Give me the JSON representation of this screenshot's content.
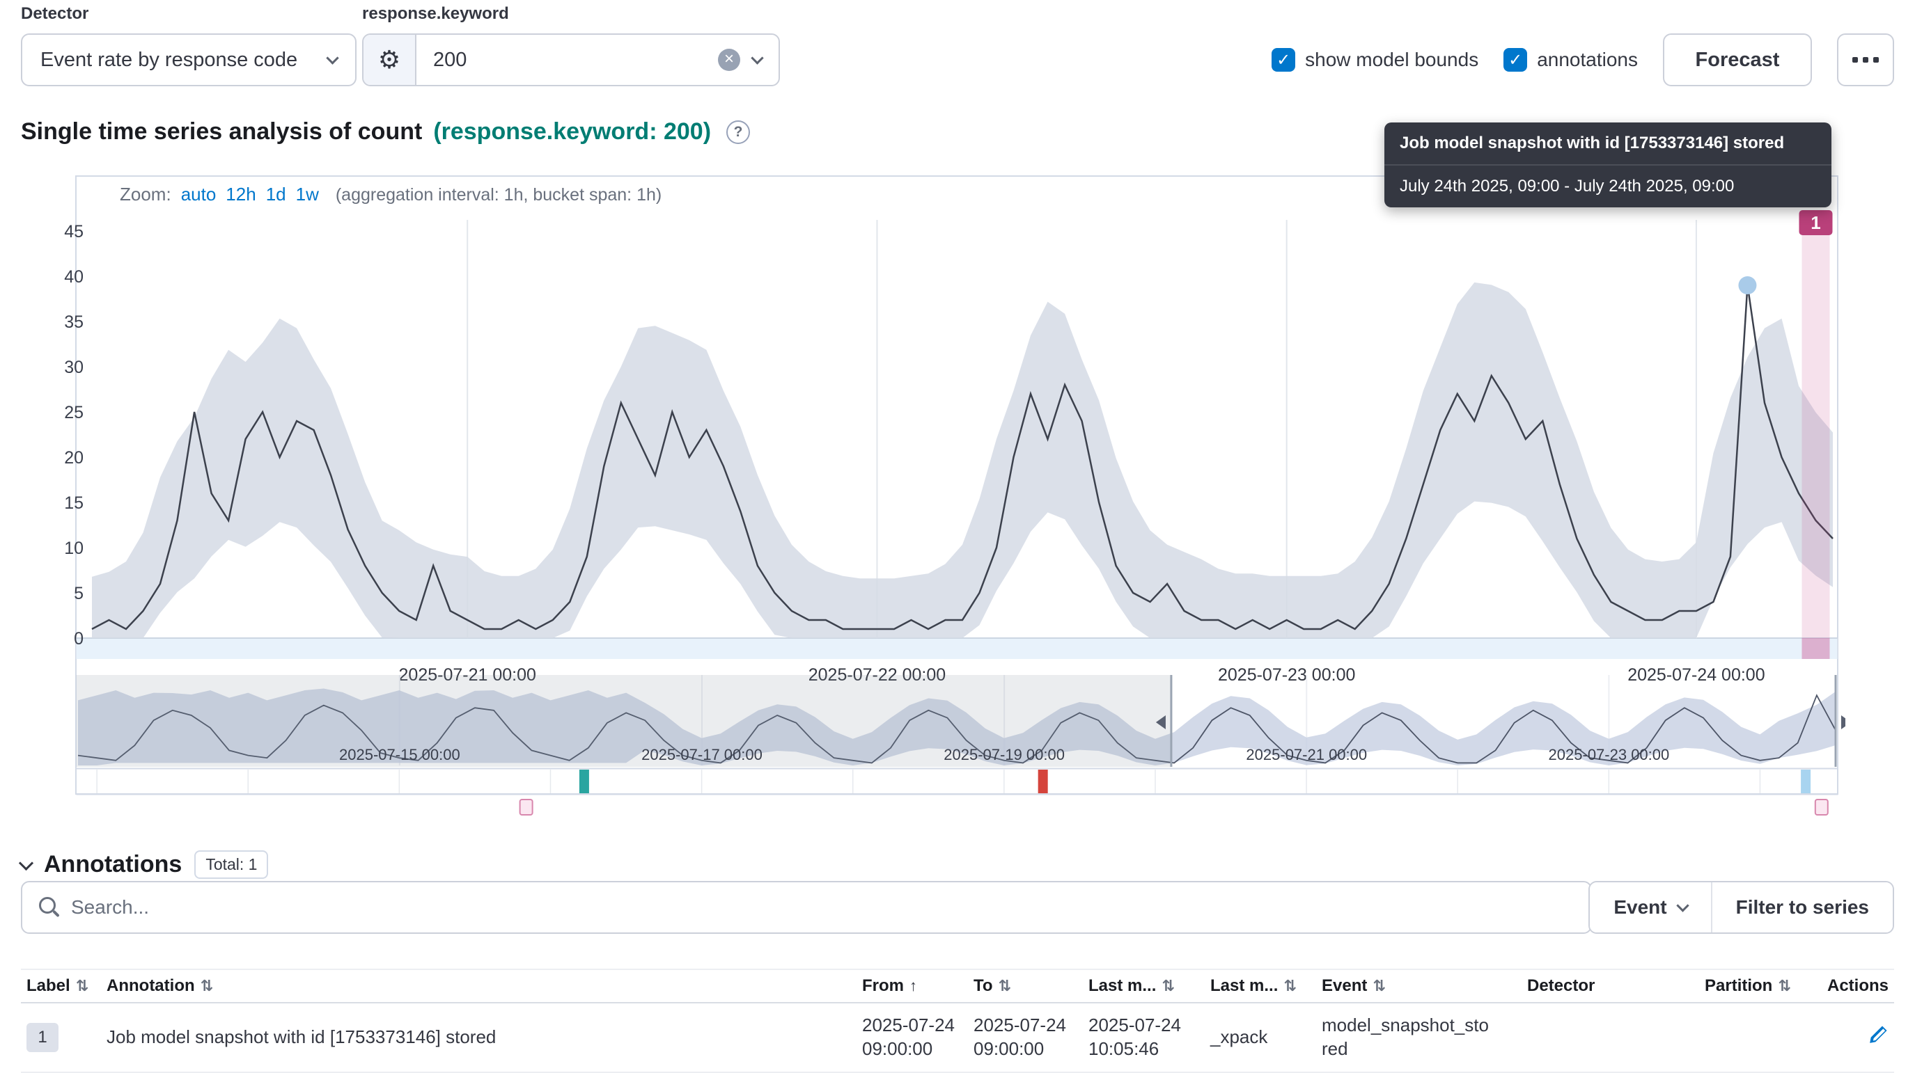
{
  "icons": {
    "check": "✓",
    "question": "?",
    "close": "×",
    "gear": "⚙"
  },
  "topbar": {
    "detector_label": "Detector",
    "detector_value": "Event rate by response code",
    "field_label": "response.keyword",
    "field_value": "200",
    "show_model_bounds_label": "show model bounds",
    "annotations_label": "annotations",
    "forecast_label": "Forecast"
  },
  "title": {
    "main": "Single time series analysis of count",
    "accent": "(response.keyword: 200)"
  },
  "tooltip": {
    "title": "Job model snapshot with id [1753373146] stored",
    "subtitle": "July 24th 2025, 09:00 - July 24th 2025, 09:00"
  },
  "zoom": {
    "label": "Zoom:",
    "links": [
      "auto",
      "12h",
      "1d",
      "1w"
    ],
    "suffix": "(aggregation interval: 1h, bucket span: 1h)"
  },
  "chart_data": {
    "type": "line",
    "title": "Single time series analysis of count",
    "ylabel": "",
    "xlabel": "",
    "ylim": [
      0,
      47
    ],
    "y_ticks": [
      0,
      5,
      10,
      15,
      20,
      25,
      30,
      35,
      40,
      45
    ],
    "x_ticks": [
      {
        "index": 22,
        "label": "2025-07-21 00:00"
      },
      {
        "index": 46,
        "label": "2025-07-22 00:00"
      },
      {
        "index": 70,
        "label": "2025-07-23 00:00"
      },
      {
        "index": 94,
        "label": "2025-07-24 00:00"
      }
    ],
    "series": [
      {
        "name": "count",
        "values": [
          1,
          2,
          1,
          3,
          6,
          13,
          25,
          16,
          13,
          22,
          25,
          20,
          24,
          23,
          18,
          12,
          8,
          5,
          3,
          2,
          8,
          3,
          2,
          1,
          1,
          2,
          1,
          2,
          4,
          9,
          19,
          26,
          22,
          18,
          25,
          20,
          23,
          19,
          14,
          8,
          5,
          3,
          2,
          2,
          1,
          1,
          1,
          1,
          2,
          1,
          2,
          2,
          5,
          10,
          20,
          27,
          22,
          28,
          24,
          15,
          8,
          5,
          4,
          6,
          3,
          2,
          2,
          1,
          2,
          1,
          2,
          1,
          1,
          2,
          1,
          3,
          6,
          11,
          17,
          23,
          27,
          24,
          29,
          26,
          22,
          24,
          17,
          11,
          7,
          4,
          3,
          2,
          2,
          3,
          3,
          4,
          9,
          39,
          26,
          20,
          16,
          13,
          11
        ]
      }
    ],
    "bounds": {
      "base_hi": 5,
      "factor_hi": 0.33,
      "base_lo": 4.5,
      "factor_lo": 0.24
    },
    "focus_marker_index": 97,
    "annotation": {
      "label": "1",
      "index": 101
    },
    "context": {
      "values": [
        4,
        3,
        2,
        8,
        18,
        22,
        20,
        15,
        6,
        4,
        3,
        10,
        20,
        24,
        21,
        14,
        5,
        3,
        2,
        9,
        19,
        23,
        22,
        13,
        6,
        4,
        2,
        7,
        17,
        21,
        18,
        10,
        4,
        2,
        1,
        6,
        16,
        20,
        17,
        9,
        3,
        2,
        1,
        7,
        18,
        22,
        19,
        10,
        4,
        2,
        1,
        6,
        17,
        21,
        18,
        9,
        3,
        2,
        1,
        7,
        18,
        23,
        20,
        11,
        4,
        2,
        1,
        6,
        16,
        21,
        18,
        10,
        3,
        1,
        1,
        6,
        17,
        22,
        18,
        9,
        3,
        2,
        1,
        7,
        18,
        23,
        19,
        10,
        4,
        2,
        3,
        9,
        28,
        14
      ],
      "bounds": {
        "base_hi": 4,
        "factor_hi": 0.5,
        "base_lo": 3,
        "factor_lo": 0.35
      },
      "wide_until_index": 29,
      "wide_hi": 26,
      "wide_lo": 1,
      "ticks": [
        {
          "f": 0.183,
          "label": "2025-07-15 00:00"
        },
        {
          "f": 0.355,
          "label": "2025-07-17 00:00"
        },
        {
          "f": 0.527,
          "label": "2025-07-19 00:00"
        },
        {
          "f": 0.699,
          "label": "2025-07-21 00:00"
        },
        {
          "f": 0.871,
          "label": "2025-07-23 00:00"
        }
      ],
      "selection": [
        0.622,
        1.0
      ],
      "anomaly_marks": [
        {
          "f": 0.288,
          "color": "#2aa5a0"
        },
        {
          "f": 0.549,
          "color": "#d5443c"
        },
        {
          "f": 0.983,
          "color": "#a8d4f0"
        }
      ],
      "annotation_marks": [
        0.255,
        0.992
      ]
    },
    "colors": {
      "bounds": "#d5dbe5",
      "line": "#3c414d",
      "context_bounds": "#c7cfe2",
      "context_line": "#4d5567",
      "axis_strip": "#e8f2fb",
      "annotation": "#b9407a",
      "annotation_band": "rgba(201,69,138,0.16)",
      "annotation_band_strip": "rgba(201,69,138,0.38)",
      "marker_dot": "#a9cbe9",
      "mask": "rgba(130,140,155,0.16)",
      "gridline": "#e2e6ec",
      "accent_blue": "#0077cc",
      "accent_teal": "#017d73"
    }
  },
  "annotations_section": {
    "heading": "Annotations",
    "total_badge": "Total: 1",
    "search_placeholder": "Search...",
    "event_button": "Event",
    "filter_button": "Filter to series",
    "table": {
      "columns": [
        {
          "label": "Label",
          "sort": "both"
        },
        {
          "label": "Annotation",
          "sort": "both"
        },
        {
          "label": "From",
          "sort": "up"
        },
        {
          "label": "To",
          "sort": "both"
        },
        {
          "label": "Last m...",
          "sort": "both"
        },
        {
          "label": "Last m...",
          "sort": "both"
        },
        {
          "label": "Event",
          "sort": "both"
        },
        {
          "label": "Detector",
          "sort": "none"
        },
        {
          "label": "Partition",
          "sort": "both"
        },
        {
          "label": "Actions",
          "sort": "none"
        }
      ],
      "rows": [
        {
          "label": "1",
          "annotation": "Job model snapshot with id [1753373146] stored",
          "from": "2025-07-24 09:00:00",
          "to": "2025-07-24 09:00:00",
          "last_modified": "2025-07-24 10:05:46",
          "last_modified_by": "_xpack",
          "event": "model_snapshot_stored",
          "detector": "",
          "partition": ""
        }
      ]
    }
  }
}
